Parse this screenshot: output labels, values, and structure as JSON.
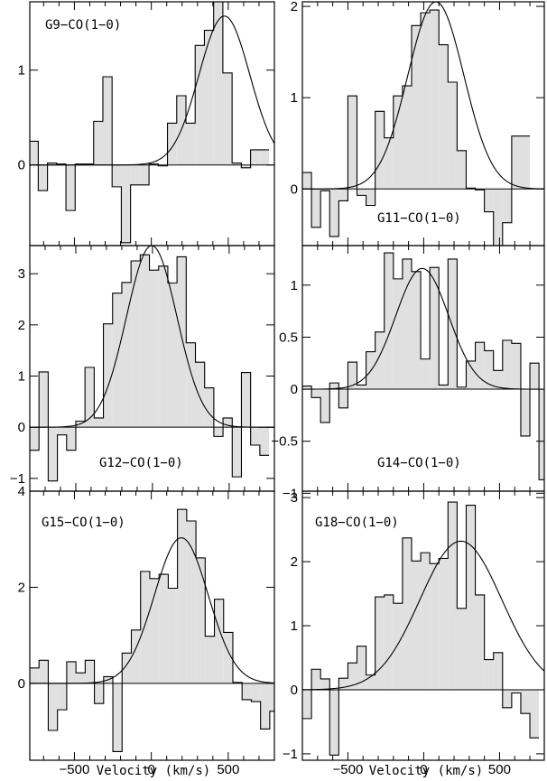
{
  "chart_data": [
    {
      "type": "step+line",
      "label": "G9−CO(1−0)",
      "xlim": [
        -790,
        800
      ],
      "ylim": [
        -0.85,
        1.72
      ],
      "yticks": [
        0,
        1
      ],
      "ytick_labels": [
        "0",
        "1"
      ],
      "xticks": [
        -500,
        0,
        500
      ],
      "xtick_labels": [],
      "bins": {
        "x_start": -795,
        "width": 60,
        "values": [
          0.25,
          -0.27,
          0.02,
          0.01,
          -0.48,
          0.01,
          0.01,
          0.46,
          0.93,
          -0.23,
          -0.82,
          -0.21,
          -0.21,
          0.01,
          -0.01,
          0.44,
          0.73,
          0.44,
          1.26,
          1.42,
          1.72,
          0.97,
          0.02,
          -0.03,
          0.16,
          0.16
        ]
      },
      "gaussian": {
        "amplitude": 1.57,
        "center": 475,
        "sigma": 165
      }
    },
    {
      "type": "step+line",
      "label": "G11−CO(1−0)",
      "xlim": [
        -800,
        795
      ],
      "ylim": [
        -0.62,
        2.05
      ],
      "yticks": [
        0,
        1,
        2
      ],
      "ytick_labels": [
        "0",
        "1",
        "2"
      ],
      "xticks": [
        -500,
        0,
        500
      ],
      "xtick_labels": [],
      "bins": {
        "x_start": -800,
        "width": 60,
        "values": [
          0.18,
          -0.42,
          -0.02,
          -0.52,
          -0.13,
          1.02,
          -0.07,
          -0.18,
          0.85,
          0.56,
          1.02,
          1.13,
          1.79,
          1.93,
          1.96,
          1.58,
          1.17,
          0.42,
          0.01,
          -0.01,
          -0.25,
          -0.63,
          -0.37,
          0.58,
          0.58
        ]
      },
      "gaussian": {
        "amplitude": 2.05,
        "center": 80,
        "sigma": 185
      }
    },
    {
      "type": "step+line",
      "label": "G12−CO(1−0)",
      "xlim": [
        -800,
        795
      ],
      "ylim": [
        -1.25,
        3.55
      ],
      "yticks": [
        -1,
        0,
        1,
        2,
        3
      ],
      "ytick_labels": [
        "−1",
        "0",
        "1",
        "2",
        "3"
      ],
      "xticks": [
        -500,
        0,
        500
      ],
      "xtick_labels": [],
      "bins": {
        "x_start": -800,
        "width": 60,
        "values": [
          -0.45,
          1.08,
          -1.05,
          -0.15,
          -0.45,
          0.12,
          1.17,
          0.18,
          2.02,
          2.62,
          2.83,
          3.25,
          3.37,
          3.07,
          3.15,
          2.82,
          3.33,
          1.65,
          1.27,
          0.77,
          -0.18,
          0.18,
          -0.97,
          1.07,
          -0.35,
          -0.55
        ]
      },
      "gaussian": {
        "amplitude": 3.55,
        "center": -5,
        "sigma": 165
      }
    },
    {
      "type": "step+line",
      "label": "G14−CO(1−0)",
      "xlim": [
        -800,
        795
      ],
      "ylim": [
        -0.98,
        1.38
      ],
      "yticks": [
        -1,
        -0.5,
        0,
        0.5,
        1
      ],
      "ytick_labels": [
        "−1",
        "−0.5",
        "0",
        "0.5",
        "1"
      ],
      "xticks": [
        -500,
        0,
        500
      ],
      "xtick_labels": [],
      "bins": {
        "x_start": -800,
        "width": 60,
        "values": [
          0.03,
          -0.08,
          -0.32,
          0.06,
          -0.18,
          0.26,
          0.04,
          0.36,
          0.55,
          1.31,
          1.06,
          1.25,
          1.13,
          0.29,
          1.17,
          0.04,
          1.25,
          0.02,
          0.27,
          0.45,
          0.37,
          0.18,
          0.47,
          0.44,
          -0.45,
          0.25,
          -0.87
        ]
      },
      "gaussian": {
        "amplitude": 1.16,
        "center": -10,
        "sigma": 175
      }
    },
    {
      "type": "step+line",
      "label": "G15−CO(1−0)",
      "xlim": [
        -790,
        800
      ],
      "ylim": [
        -1.6,
        4.0
      ],
      "yticks": [
        0,
        2,
        4
      ],
      "ytick_labels": [
        "0",
        "2",
        "4"
      ],
      "xticks": [
        -500,
        0,
        500
      ],
      "xtick_labels": [
        "−500",
        "0",
        "500"
      ],
      "bins": {
        "x_start": -790,
        "width": 60,
        "values": [
          0.32,
          0.48,
          -0.98,
          -0.55,
          0.45,
          0.22,
          0.48,
          -0.42,
          0.14,
          -1.42,
          0.63,
          1.11,
          2.33,
          2.18,
          2.27,
          1.98,
          3.62,
          3.38,
          2.61,
          0.98,
          1.75,
          1.06,
          0.02,
          -0.34,
          -0.38,
          -0.95,
          -0.58
        ]
      },
      "gaussian": {
        "amplitude": 3.03,
        "center": 195,
        "sigma": 175
      }
    },
    {
      "type": "step+line",
      "label": "G18−CO(1−0)",
      "xlim": [
        -800,
        795
      ],
      "ylim": [
        -1.1,
        3.1
      ],
      "yticks": [
        -1,
        0,
        1,
        2,
        3
      ],
      "ytick_labels": [
        "−1",
        "0",
        "1",
        "2",
        "3"
      ],
      "xticks": [
        -500,
        0,
        500
      ],
      "xtick_labels": [
        "−500",
        "0",
        "500"
      ],
      "bins": {
        "x_start": -800,
        "width": 60,
        "values": [
          -0.45,
          0.32,
          0.17,
          -1.02,
          0.18,
          0.42,
          0.68,
          0.23,
          1.45,
          1.48,
          1.35,
          2.37,
          2.01,
          2.14,
          1.97,
          2.05,
          2.93,
          1.27,
          2.88,
          1.48,
          0.47,
          0.58,
          -0.28,
          -0.05,
          -0.37,
          -0.75
        ]
      },
      "gaussian": {
        "amplitude": 2.32,
        "center": 245,
        "sigma": 270
      }
    }
  ],
  "axes": {
    "xlabel_left": "Velocity (km/s)",
    "xlabel_right": "Velocity (km/s)"
  },
  "colors": {
    "fill": "#e0e0e0",
    "line": "#000000"
  }
}
